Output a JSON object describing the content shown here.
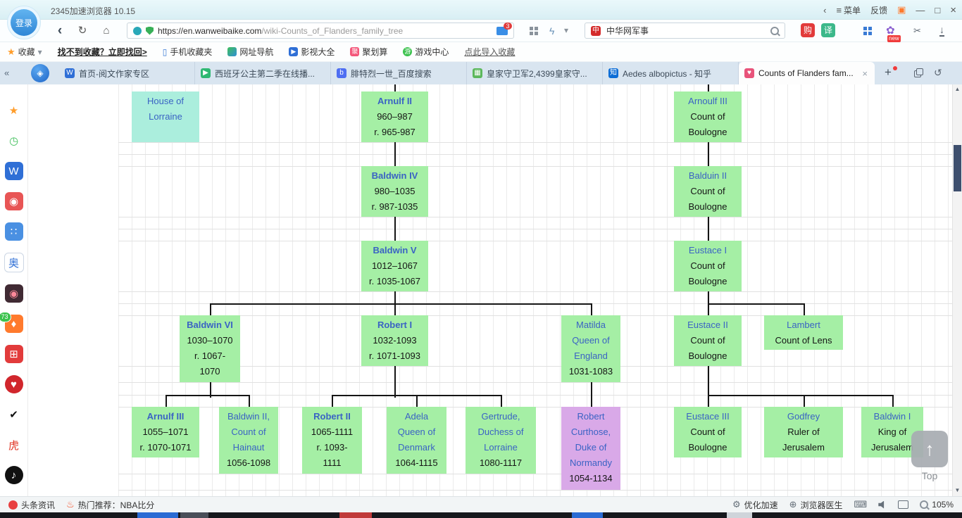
{
  "window": {
    "title": "2345加速浏览器 10.15",
    "menu_label": "菜单",
    "feedback_label": "反馈"
  },
  "glyphs": {
    "back": "‹",
    "refresh": "↻",
    "home": "⌂",
    "star": "★",
    "caret_down": "▾",
    "phone": "▯",
    "plus": "+",
    "undo": "↺",
    "collapse_left": "«",
    "compass": "◈",
    "scissors": "✂",
    "download": "↓",
    "lightning": "ϟ",
    "menu_lines": "≡",
    "chevron_left": "‹",
    "minimize": "—",
    "maximize": "□",
    "close": "×",
    "gift": "▣",
    "flower": "✿",
    "fire": "♨",
    "gear": "⚙",
    "medic": "⊕",
    "keyboard": "⌨",
    "arrow_up": "↑",
    "scroll_up": "▲",
    "scroll_down": "▼"
  },
  "nav": {
    "login_label": "登录",
    "url_domain": "https://en.wanweibaike.com",
    "url_path": "/wiki-Counts_of_Flanders_family_tree",
    "reader_badge": "3",
    "search_value": "中华网军事",
    "shop_label": "购",
    "translate_label": "译",
    "new_badge_label": "new"
  },
  "bookmarks": {
    "favorites_label": "收藏",
    "restore_link": "找不到收藏？立即找回>",
    "mobile_favorites": "手机收藏夹",
    "site_nav": "网址导航",
    "video_all": "影视大全",
    "juhuasuan": "聚划算",
    "game_center": "游戏中心",
    "import_link": "点此导入收藏"
  },
  "tabs": [
    {
      "label": "首页-阅文作家专区",
      "icon": "doc-w-icon",
      "glyph": "W",
      "color": "#2f6fd6"
    },
    {
      "label": "西班牙公主第二季在线播...",
      "icon": "video-site-icon",
      "glyph": "▶",
      "color": "#2eb872"
    },
    {
      "label": "腓特烈一世_百度搜索",
      "icon": "baidu-icon",
      "glyph": "b",
      "color": "#4e6ef2"
    },
    {
      "label": "皇家守卫军2,4399皇家守...",
      "icon": "game-4399-icon",
      "glyph": "▦",
      "color": "#5cb85c"
    },
    {
      "label": "Aedes albopictus - 知乎",
      "icon": "zhihu-icon",
      "glyph": "知",
      "color": "#0c6dd6"
    },
    {
      "label": "Counts of Flanders fam...",
      "icon": "wanweibaike-icon",
      "glyph": "♥",
      "color": "#e8537a",
      "active": true
    }
  ],
  "sidebar": [
    {
      "name": "favorites-star-icon",
      "glyph": "★",
      "fg": "#ff9d2b",
      "bg": "transparent"
    },
    {
      "name": "history-clock-icon",
      "glyph": "◷",
      "fg": "#3fbf5a",
      "bg": "transparent"
    },
    {
      "name": "word-doc-icon",
      "glyph": "W",
      "fg": "#ffffff",
      "bg": "#2f6fd6"
    },
    {
      "name": "app-icon-red",
      "glyph": "◉",
      "fg": "#ffffff",
      "bg": "#e85555"
    },
    {
      "name": "app-icon-blue-dots",
      "glyph": "∷",
      "fg": "#ffffff",
      "bg": "#4a90e2"
    },
    {
      "name": "app-icon-ao",
      "glyph": "奥",
      "fg": "#2f6fd6",
      "bg": "#ffffff",
      "border": "#ccd6e4"
    },
    {
      "name": "app-icon-dark",
      "glyph": "◉",
      "fg": "#ff8899",
      "bg": "#402a33"
    },
    {
      "name": "game-fire-icon",
      "glyph": "♦",
      "fg": "#ffffff",
      "bg": "#ff7a2d",
      "badge": "73"
    },
    {
      "name": "app-icon-grid-red",
      "glyph": "⊞",
      "fg": "#ffffff",
      "bg": "#e23b3b"
    },
    {
      "name": "music-heart-icon",
      "glyph": "♥",
      "fg": "#ffffff",
      "bg": "#d1262c",
      "round": true
    },
    {
      "name": "swoosh-icon",
      "glyph": "✔",
      "fg": "#111111",
      "bg": "transparent"
    },
    {
      "name": "tiger-icon",
      "glyph": "虎",
      "fg": "#e03322",
      "bg": "transparent"
    },
    {
      "name": "tiktok-note-icon",
      "glyph": "♪",
      "fg": "#ffffff",
      "bg": "#111111",
      "round": true
    }
  ],
  "tree": {
    "nodes": [
      {
        "id": "house-lorraine",
        "link": [
          "House of",
          "Lorraine"
        ],
        "plain": [],
        "variant": "cyan"
      },
      {
        "id": "arnulf-ii",
        "link": [
          "Arnulf II"
        ],
        "plain": [
          "960–987",
          "r. 965-987"
        ],
        "bold": true
      },
      {
        "id": "arnoulf-iii",
        "link": [
          "Arnoulf III"
        ],
        "plain": [
          "Count of",
          "Boulogne"
        ]
      },
      {
        "id": "baldwin-iv",
        "link": [
          "Baldwin IV"
        ],
        "plain": [
          "980–1035",
          "r. 987-1035"
        ],
        "bold": true
      },
      {
        "id": "balduin-ii",
        "link": [
          "Balduin II"
        ],
        "plain": [
          "Count of",
          "Boulogne"
        ]
      },
      {
        "id": "baldwin-v",
        "link": [
          "Baldwin V"
        ],
        "plain": [
          "1012–1067",
          "r. 1035-1067"
        ],
        "bold": true
      },
      {
        "id": "eustace-i",
        "link": [
          "Eustace I"
        ],
        "plain": [
          "Count of",
          "Boulogne"
        ]
      },
      {
        "id": "baldwin-vi",
        "link": [
          "Baldwin VI"
        ],
        "plain": [
          "1030–1070",
          "r. 1067-",
          "1070"
        ],
        "bold": true
      },
      {
        "id": "robert-i",
        "link": [
          "Robert I"
        ],
        "plain": [
          "1032-1093",
          "r. 1071-1093"
        ],
        "bold": true
      },
      {
        "id": "matilda",
        "link": [
          "Matilda",
          "Queen of",
          "England"
        ],
        "plain": [
          "1031-1083"
        ]
      },
      {
        "id": "eustace-ii",
        "link": [
          "Eustace II"
        ],
        "plain": [
          "Count of",
          "Boulogne"
        ]
      },
      {
        "id": "lambert",
        "link": [
          "Lambert"
        ],
        "plain": [
          "Count of Lens"
        ]
      },
      {
        "id": "arnulf-iii-jr",
        "link": [
          "Arnulf III"
        ],
        "plain": [
          "1055–1071",
          "r. 1070-1071"
        ],
        "bold": true
      },
      {
        "id": "baldwin-ii-hainaut",
        "link": [
          "Baldwin II,",
          "Count of",
          "Hainaut"
        ],
        "plain": [
          "1056-1098"
        ]
      },
      {
        "id": "robert-ii",
        "link": [
          "Robert II"
        ],
        "plain": [
          "1065-1111",
          "r. 1093-",
          "1111"
        ],
        "bold": true
      },
      {
        "id": "adela",
        "link": [
          "Adela",
          "Queen of",
          "Denmark"
        ],
        "plain": [
          "1064-1115"
        ]
      },
      {
        "id": "gertrude",
        "link": [
          "Gertrude,",
          "Duchess of",
          "Lorraine"
        ],
        "plain": [
          "1080-1117"
        ]
      },
      {
        "id": "robert-curthose",
        "link": [
          "Robert",
          "Curthose,",
          "Duke of",
          "Normandy"
        ],
        "plain": [
          "1054-1134"
        ],
        "variant": "purple"
      },
      {
        "id": "eustace-iii",
        "link": [
          "Eustace III"
        ],
        "plain": [
          "Count of",
          "Boulogne"
        ]
      },
      {
        "id": "godfrey",
        "link": [
          "Godfrey"
        ],
        "plain": [
          "Ruler of",
          "Jerusalem"
        ]
      },
      {
        "id": "baldwin-i",
        "link": [
          "Baldwin I"
        ],
        "plain": [
          "King of",
          "Jerusalem"
        ]
      }
    ]
  },
  "status": {
    "toutiao": "头条资讯",
    "hot": "热门推荐：NBA比分",
    "optimize": "优化加速",
    "doctor": "浏览器医生",
    "zoom": "105%",
    "top_label": "Top"
  },
  "colors": {
    "node_green": "#a5efa5",
    "node_cyan": "#abeedd",
    "node_purple": "#d9a9e8",
    "link_blue": "#3a63c4"
  }
}
